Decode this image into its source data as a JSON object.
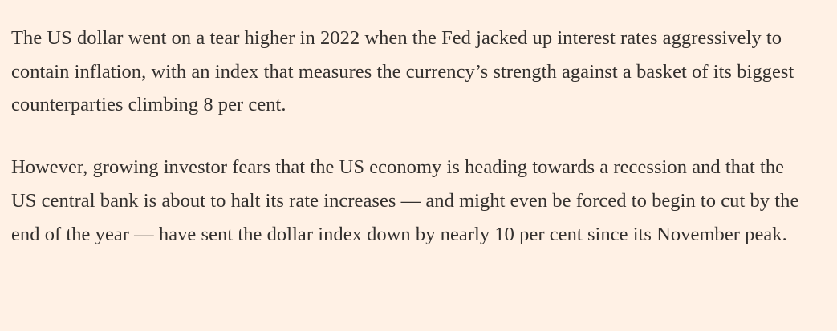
{
  "article": {
    "paragraphs": [
      "The US dollar went on a tear higher in 2022 when the Fed jacked up interest rates aggressively to contain inflation, with an index that measures the currency’s strength against a basket of its biggest counterparties climbing 8 per cent.",
      "However, growing investor fears that the US economy is heading towards a recession and that the US central bank is about to halt its rate increases — and might even be forced to begin to cut by the end of the year — have sent the dollar index down by nearly 10 per cent since its November peak."
    ]
  },
  "colors": {
    "background": "#fff1e5",
    "text": "#33302e"
  }
}
